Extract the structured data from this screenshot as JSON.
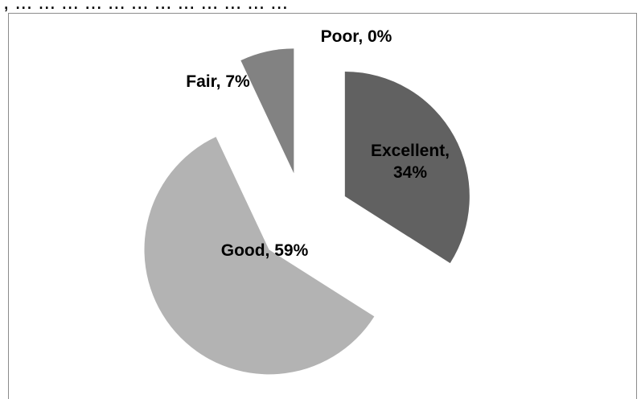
{
  "caption": ", ... ... ... ... ... ... ... ... ... ... ... ...",
  "chart_data": {
    "type": "pie",
    "categories": [
      "Excellent",
      "Good",
      "Fair",
      "Poor"
    ],
    "values": [
      34,
      59,
      7,
      0
    ],
    "labels": [
      "Excellent,\n34%",
      "Good, 59%",
      "Fair, 7%",
      "Poor, 0%"
    ],
    "colors": [
      "#616161",
      "#b3b3b3",
      "#828282",
      "#d9d9d9"
    ],
    "exploded": true,
    "start_angle_deg": 0,
    "direction": "clockwise",
    "legend": "none"
  }
}
